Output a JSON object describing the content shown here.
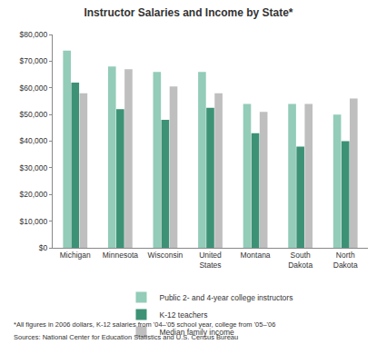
{
  "chart_data": {
    "type": "bar",
    "title": "Instructor Salaries and Income by State*",
    "categories": [
      "Michigan",
      "Minnesota",
      "Wisconsin",
      "United States",
      "Montana",
      "South Dakota",
      "North Dakota"
    ],
    "series": [
      {
        "name": "Public 2- and 4-year college instructors",
        "color": "#93ccb8",
        "values": [
          74000,
          68000,
          66000,
          66000,
          54000,
          54000,
          50000
        ]
      },
      {
        "name": "K-12 teachers",
        "color": "#3d9276",
        "values": [
          62000,
          52000,
          48000,
          52500,
          43000,
          38000,
          40000
        ]
      },
      {
        "name": "Median family income",
        "color": "#bfbfbf",
        "values": [
          58000,
          67000,
          60500,
          58000,
          51000,
          54000,
          56000
        ]
      }
    ],
    "ylim": [
      0,
      80000
    ],
    "yticks": [
      {
        "value": 0,
        "label": "$0"
      },
      {
        "value": 10000,
        "label": "$10,000"
      },
      {
        "value": 20000,
        "label": "$20,000"
      },
      {
        "value": 30000,
        "label": "$30,000"
      },
      {
        "value": 40000,
        "label": "$40,000"
      },
      {
        "value": 50000,
        "label": "$50,000"
      },
      {
        "value": 60000,
        "label": "$60,000"
      },
      {
        "value": 70000,
        "label": "$70,000"
      },
      {
        "value": 80000,
        "label": "$80,000"
      }
    ],
    "grid": false,
    "legend": "bottom",
    "annotations": [
      "*All figures in 2006 dollars, K-12 salaries from '04–'05 school year, college from '05–'06",
      "Sources: National Center for Education Statistics and U.S. Census Bureau"
    ]
  }
}
